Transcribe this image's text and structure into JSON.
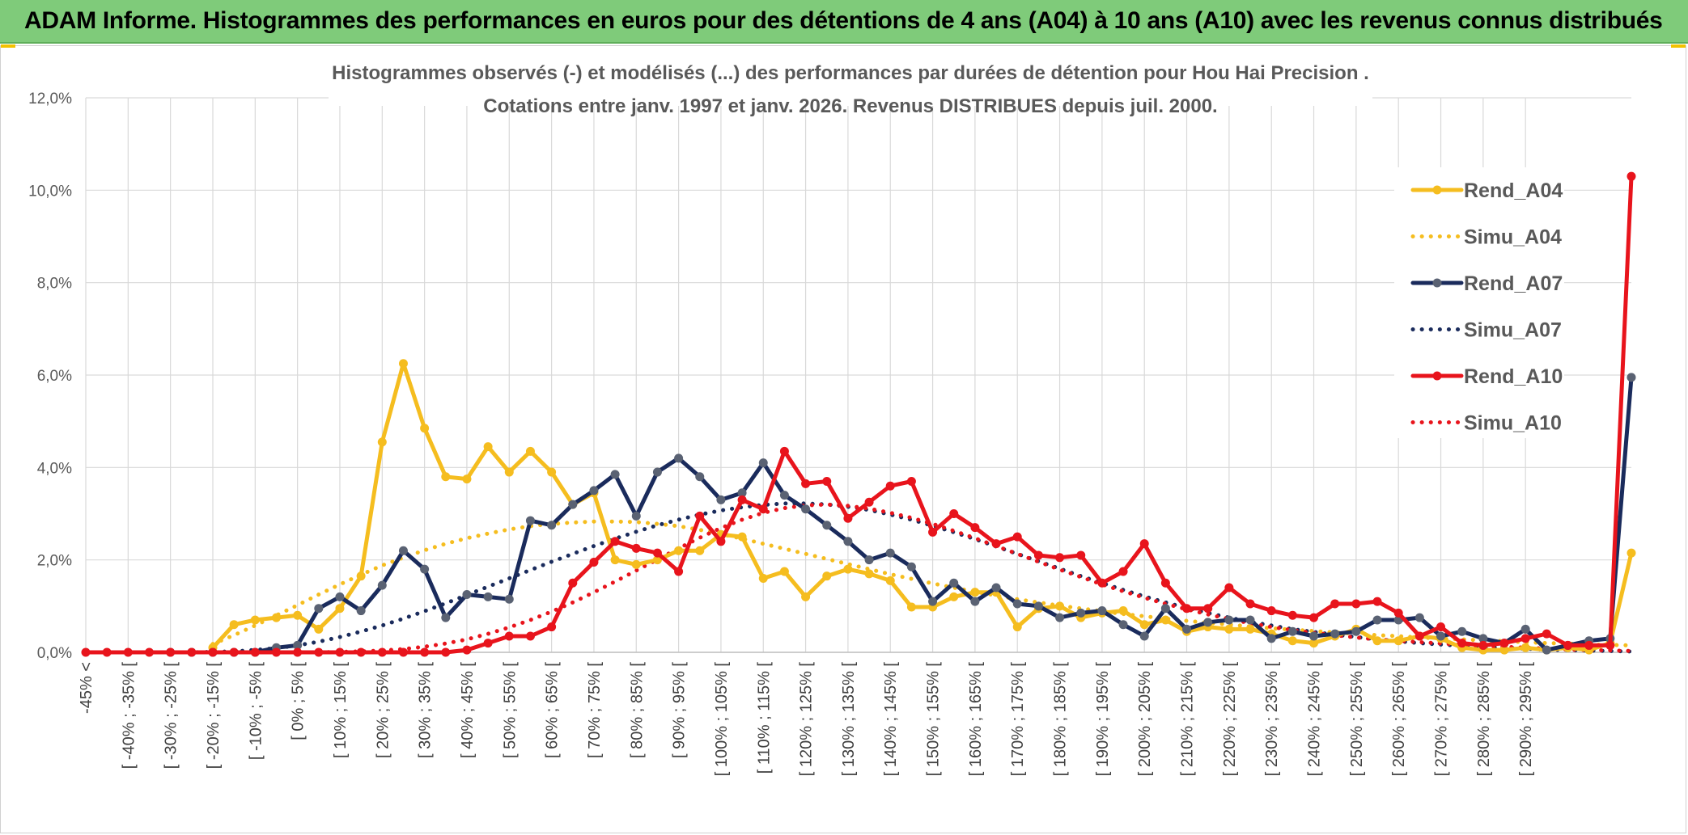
{
  "banner": {
    "title": "ADAM Informe. Histogrammes des performances en euros pour des détentions de 4 ans (A04) à 10 ans (A10) avec les revenus connus distribués"
  },
  "chart_data": {
    "type": "line",
    "title_line1": "Histogrammes observés (-) et modélisés (...) des performances par durées de détention pour Hou Hai Precision .",
    "title_line2": "Cotations entre janv. 1997 et janv. 2026. Revenus DISTRIBUES depuis juil. 2000.",
    "ylim": [
      0,
      12
    ],
    "y_ticks": [
      "0,0%",
      "2,0%",
      "4,0%",
      "6,0%",
      "8,0%",
      "10,0%",
      "12,0%"
    ],
    "x_tick_labels": [
      "-45% <",
      "[ -40% ; -35% [",
      "[ -30% ; -25% [",
      "[ -20% ; -15% [",
      "[ -10% ; -5% [",
      "[ 0% ; 5% [",
      "[ 10% ; 15% [",
      "[ 20% ; 25% [",
      "[ 30% ; 35% [",
      "[ 40% ; 45% [",
      "[ 50% ; 55% [",
      "[ 60% ; 65% [",
      "[ 70% ; 75% [",
      "[ 80% ; 85% [",
      "[ 90% ; 95% [",
      "[ 100% ; 105% [",
      "[ 110% ; 115% [",
      "[ 120% ; 125% [",
      "[ 130% ; 135% [",
      "[ 140% ; 145% [",
      "[ 150% ; 155% [",
      "[ 160% ; 165% [",
      "[ 170% ; 175% [",
      "[ 180% ; 185% [",
      "[ 190% ; 195% [",
      "[ 200% ; 205% [",
      "[ 210% ; 215% [",
      "[ 220% ; 225% [",
      "[ 230% ; 235% [",
      "[ 240% ; 245% [",
      "[ 250% ; 255% [",
      "[ 260% ; 265% [",
      "[ 270% ; 275% [",
      "[ 280% ; 285% [",
      "[ 290% ; 295% ["
    ],
    "legend_position": "right",
    "series": [
      {
        "name": "Rend_A04",
        "color": "#f5bd1f",
        "style": "solid",
        "markers": true,
        "values": [
          0.1,
          0.6,
          0.7,
          0.75,
          0.8,
          0.5,
          0.95,
          1.65,
          4.55,
          6.25,
          4.85,
          3.8,
          3.75,
          4.45,
          3.9,
          4.35,
          3.9,
          3.2,
          3.45,
          2.0,
          1.9,
          2.0,
          2.2,
          2.2,
          2.55,
          2.5,
          1.6,
          1.75,
          1.2,
          1.65,
          1.8,
          1.7,
          1.55,
          0.98,
          0.98,
          1.2,
          1.3,
          1.3,
          0.55,
          0.95,
          1.0,
          0.75,
          0.85,
          0.9,
          0.6,
          0.7,
          0.45,
          0.55,
          0.5,
          0.5,
          0.4,
          0.25,
          0.2,
          0.35,
          0.5,
          0.25,
          0.25,
          0.35,
          0.3,
          0.1,
          0.05,
          0.05,
          0.1,
          0.05,
          0.1,
          0.05,
          0.2,
          2.15
        ]
      },
      {
        "name": "Simu_A04",
        "color": "#f5bd1f",
        "style": "dotted",
        "markers": false,
        "values": [
          0.18,
          0.37,
          0.58,
          0.8,
          1.02,
          1.25,
          1.47,
          1.68,
          1.88,
          2.05,
          2.21,
          2.35,
          2.47,
          2.57,
          2.66,
          2.73,
          2.78,
          2.81,
          2.83,
          2.83,
          2.82,
          2.78,
          2.73,
          2.65,
          2.56,
          2.46,
          2.35,
          2.24,
          2.13,
          2.02,
          1.91,
          1.8,
          1.69,
          1.59,
          1.49,
          1.4,
          1.31,
          1.23,
          1.15,
          1.08,
          1.01,
          0.95,
          0.89,
          0.83,
          0.78,
          0.73,
          0.68,
          0.64,
          0.6,
          0.56,
          0.52,
          0.49,
          0.46,
          0.43,
          0.4,
          0.37,
          0.35,
          0.32,
          0.3,
          0.28,
          0.26,
          0.24,
          0.22,
          0.2,
          0.19,
          0.17,
          0.16,
          0.15
        ]
      },
      {
        "name": "Rend_A07",
        "color": "#1a2b5c",
        "style": "solid",
        "markers": true,
        "values": [
          0,
          0,
          0,
          0,
          0,
          0.1,
          0.15,
          0.95,
          1.2,
          0.9,
          1.45,
          2.2,
          1.8,
          0.75,
          1.25,
          1.2,
          1.15,
          2.85,
          2.75,
          3.2,
          3.5,
          3.85,
          2.95,
          3.9,
          4.2,
          3.8,
          3.3,
          3.45,
          4.1,
          3.4,
          3.1,
          2.75,
          2.4,
          2.0,
          2.15,
          1.85,
          1.1,
          1.5,
          1.1,
          1.4,
          1.05,
          1.0,
          0.75,
          0.85,
          0.9,
          0.6,
          0.35,
          0.95,
          0.5,
          0.65,
          0.7,
          0.7,
          0.3,
          0.45,
          0.35,
          0.4,
          0.45,
          0.7,
          0.7,
          0.75,
          0.35,
          0.45,
          0.3,
          0.2,
          0.5,
          0.05,
          0.15,
          0.25,
          0.3,
          5.95
        ]
      },
      {
        "name": "Simu_A07",
        "color": "#1a2b5c",
        "style": "dotted",
        "markers": false,
        "values": [
          0,
          0,
          0.01,
          0.02,
          0.05,
          0.09,
          0.15,
          0.23,
          0.33,
          0.45,
          0.58,
          0.73,
          0.89,
          1.06,
          1.24,
          1.42,
          1.6,
          1.78,
          1.96,
          2.13,
          2.3,
          2.46,
          2.61,
          2.75,
          2.87,
          2.98,
          3.07,
          3.14,
          3.19,
          3.22,
          3.22,
          3.2,
          3.15,
          3.08,
          2.98,
          2.87,
          2.74,
          2.6,
          2.45,
          2.29,
          2.13,
          1.97,
          1.81,
          1.65,
          1.5,
          1.35,
          1.21,
          1.08,
          0.96,
          0.85,
          0.75,
          0.66,
          0.58,
          0.5,
          0.44,
          0.38,
          0.33,
          0.28,
          0.24,
          0.2,
          0.17,
          0.14,
          0.12,
          0.1,
          0.08,
          0.06,
          0.05,
          0.04,
          0.03,
          0.02
        ]
      },
      {
        "name": "Rend_A10",
        "color": "#e8141c",
        "style": "solid",
        "markers": true,
        "values": [
          0,
          0,
          0,
          0,
          0,
          0,
          0,
          0,
          0,
          0,
          0,
          0,
          0,
          0,
          0,
          0,
          0,
          0,
          0.05,
          0.2,
          0.35,
          0.35,
          0.55,
          1.5,
          1.95,
          2.4,
          2.25,
          2.15,
          1.75,
          2.95,
          2.4,
          3.3,
          3.1,
          4.35,
          3.65,
          3.7,
          2.9,
          3.25,
          3.6,
          3.7,
          2.6,
          3.0,
          2.7,
          2.35,
          2.5,
          2.1,
          2.05,
          2.1,
          1.5,
          1.75,
          2.35,
          1.5,
          0.95,
          0.95,
          1.4,
          1.05,
          0.9,
          0.8,
          0.75,
          1.05,
          1.05,
          1.1,
          0.85,
          0.35,
          0.55,
          0.2,
          0.15,
          0.2,
          0.3,
          0.4,
          0.15,
          0.15,
          0.15,
          10.3
        ]
      },
      {
        "name": "Simu_A10",
        "color": "#e8141c",
        "style": "dotted",
        "markers": false,
        "values": [
          0,
          0,
          0,
          0,
          0,
          0,
          0,
          0,
          0,
          0,
          0,
          0,
          0.01,
          0.02,
          0.04,
          0.07,
          0.12,
          0.19,
          0.28,
          0.4,
          0.54,
          0.7,
          0.88,
          1.08,
          1.3,
          1.53,
          1.77,
          2.01,
          2.25,
          2.48,
          2.69,
          2.87,
          3.02,
          3.12,
          3.18,
          3.2,
          3.17,
          3.11,
          3.02,
          2.91,
          2.78,
          2.63,
          2.47,
          2.3,
          2.13,
          1.96,
          1.79,
          1.63,
          1.47,
          1.32,
          1.18,
          1.05,
          0.93,
          0.82,
          0.72,
          0.63,
          0.55,
          0.48,
          0.42,
          0.37,
          0.32,
          0.28,
          0.25,
          0.22,
          0.19,
          0.16,
          0.14,
          0.12,
          0.1,
          0.08,
          0.06,
          0.05,
          0.04,
          0.03
        ]
      }
    ]
  }
}
